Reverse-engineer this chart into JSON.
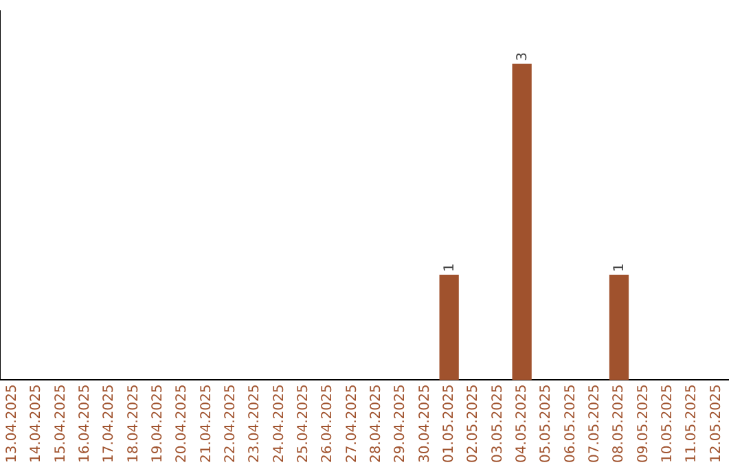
{
  "chart_data": {
    "type": "bar",
    "categories": [
      "13.04.2025",
      "14.04.2025",
      "15.04.2025",
      "16.04.2025",
      "17.04.2025",
      "18.04.2025",
      "19.04.2025",
      "20.04.2025",
      "21.04.2025",
      "22.04.2025",
      "23.04.2025",
      "24.04.2025",
      "25.04.2025",
      "26.04.2025",
      "27.04.2025",
      "28.04.2025",
      "29.04.2025",
      "30.04.2025",
      "01.05.2025",
      "02.05.2025",
      "03.05.2025",
      "04.05.2025",
      "05.05.2025",
      "06.05.2025",
      "07.05.2025",
      "08.05.2025",
      "09.05.2025",
      "10.05.2025",
      "11.05.2025",
      "12.05.2025"
    ],
    "values": [
      null,
      null,
      null,
      null,
      null,
      null,
      null,
      null,
      null,
      null,
      null,
      null,
      null,
      null,
      null,
      null,
      null,
      null,
      1,
      null,
      null,
      3,
      null,
      null,
      null,
      1,
      null,
      null,
      null,
      null
    ],
    "data_labels": true,
    "color": "#a0522d",
    "tick_labels": "x",
    "grid": false,
    "legend": false
  }
}
